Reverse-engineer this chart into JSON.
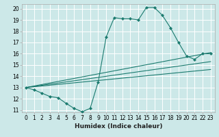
{
  "xlabel": "Humidex (Indice chaleur)",
  "bg_color": "#cce8e8",
  "grid_color": "#ffffff",
  "line_color": "#1a7a6e",
  "xlim": [
    -0.5,
    23.5
  ],
  "ylim": [
    10.8,
    20.4
  ],
  "xticks": [
    0,
    1,
    2,
    3,
    4,
    5,
    6,
    7,
    8,
    9,
    10,
    11,
    12,
    13,
    14,
    15,
    16,
    17,
    18,
    19,
    20,
    21,
    22,
    23
  ],
  "yticks": [
    11,
    12,
    13,
    14,
    15,
    16,
    17,
    18,
    19,
    20
  ],
  "curve1_x": [
    0,
    1,
    2,
    3,
    4,
    5,
    6,
    7,
    8,
    9,
    10,
    11,
    12,
    13,
    14,
    15,
    16,
    17,
    18,
    19,
    20,
    21,
    22,
    23
  ],
  "curve1_y": [
    13.0,
    12.8,
    12.5,
    12.2,
    12.1,
    11.6,
    11.15,
    10.85,
    11.15,
    13.5,
    17.5,
    19.2,
    19.1,
    19.1,
    19.0,
    20.1,
    20.1,
    19.4,
    18.3,
    17.0,
    15.8,
    15.5,
    16.0,
    16.0
  ],
  "line1_x": [
    0,
    23
  ],
  "line1_y": [
    13.0,
    16.1
  ],
  "line2_x": [
    0,
    23
  ],
  "line2_y": [
    13.0,
    15.3
  ],
  "line3_x": [
    0,
    23
  ],
  "line3_y": [
    13.0,
    14.6
  ],
  "tick_fontsize": 5.5,
  "xlabel_fontsize": 6.5
}
